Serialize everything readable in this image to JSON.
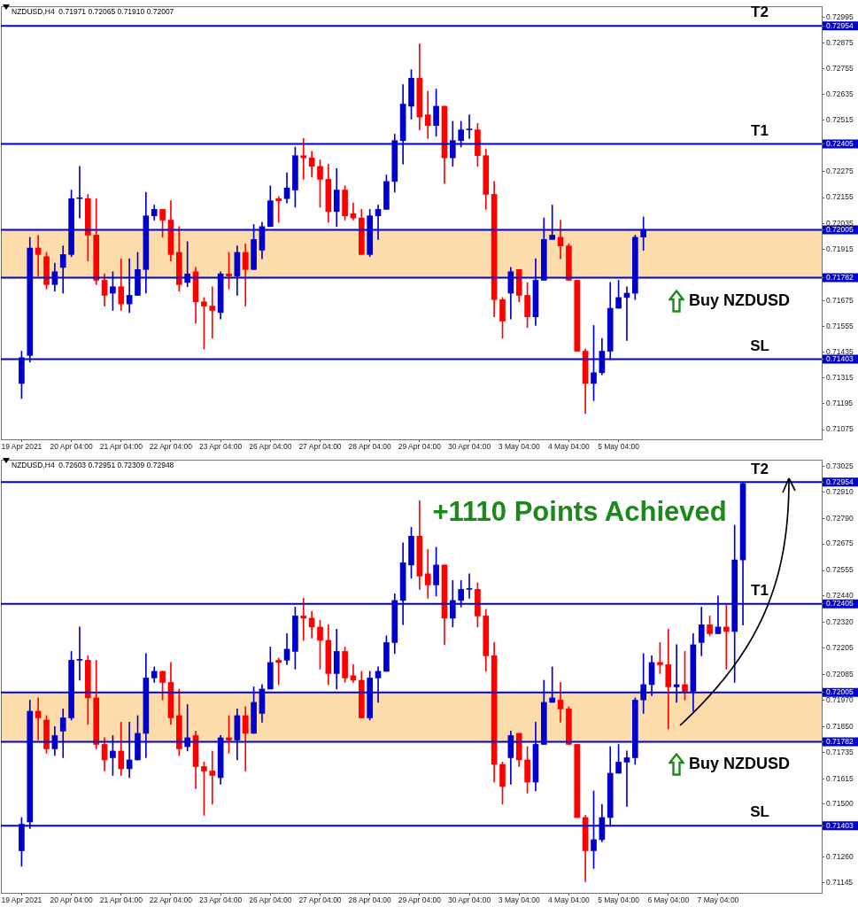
{
  "chart_data": [
    {
      "type": "candlestick",
      "title": "NZDUSD,H4  0.71971 0.72065 0.71910 0.72007",
      "categories": [
        null,
        null,
        "19 Apr 2021",
        null,
        null,
        null,
        null,
        null,
        "20 Apr 04:00",
        null,
        null,
        null,
        null,
        null,
        "21 Apr 04:00",
        null,
        null,
        null,
        null,
        null,
        "22 Apr 04:00",
        null,
        null,
        null,
        null,
        null,
        "23 Apr 04:00",
        null,
        null,
        null,
        null,
        null,
        "26 Apr 04:00",
        null,
        null,
        null,
        null,
        null,
        "27 Apr 04:00",
        null,
        null,
        null,
        null,
        null,
        "28 Apr 04:00",
        null,
        null,
        null,
        null,
        null,
        "29 Apr 04:00",
        null,
        null,
        null,
        null,
        null,
        "30 Apr 04:00",
        null,
        null,
        null,
        null,
        null,
        "3 May 04:00",
        null,
        null,
        null,
        null,
        null,
        "4 May 04:00",
        null,
        null,
        null,
        null,
        null,
        "5 May 04:00",
        null,
        null,
        null,
        null,
        null,
        null,
        null,
        null,
        null,
        null,
        null,
        null,
        null,
        null,
        null,
        null,
        null,
        null,
        null,
        null,
        null,
        null,
        null,
        null
      ],
      "ohlc": [
        null,
        null,
        [
          0.7129,
          0.7144,
          0.7122,
          0.7141
        ],
        [
          0.7142,
          0.7197,
          0.7139,
          0.7192
        ],
        [
          0.7192,
          0.7198,
          0.7179,
          0.7189
        ],
        [
          0.7188,
          0.719,
          0.7173,
          0.7175
        ],
        [
          0.7175,
          0.7185,
          0.7172,
          0.7181
        ],
        [
          0.7183,
          0.7193,
          0.7171,
          0.7189
        ],
        [
          0.7189,
          0.7219,
          0.7188,
          0.7215
        ],
        [
          0.7215,
          0.723,
          0.7206,
          0.7215
        ],
        [
          0.7215,
          0.7217,
          0.7186,
          0.7198
        ],
        [
          0.7198,
          0.7215,
          0.7175,
          0.7177
        ],
        [
          0.7177,
          0.718,
          0.7165,
          0.717
        ],
        [
          0.7171,
          0.7181,
          0.7163,
          0.7174
        ],
        [
          0.7174,
          0.7187,
          0.7163,
          0.7166
        ],
        [
          0.7166,
          0.7187,
          0.7162,
          0.717
        ],
        [
          0.717,
          0.719,
          0.717,
          0.7182
        ],
        [
          0.7182,
          0.7218,
          0.7171,
          0.7207
        ],
        [
          0.7207,
          0.7212,
          0.7205,
          0.721
        ],
        [
          0.721,
          0.721,
          0.7197,
          0.7205
        ],
        [
          0.7205,
          0.7214,
          0.7186,
          0.7189
        ],
        [
          0.719,
          0.7202,
          0.7172,
          0.7175
        ],
        [
          0.7176,
          0.7195,
          0.7174,
          0.718
        ],
        [
          0.7181,
          0.7183,
          0.7157,
          0.7167
        ],
        [
          0.7167,
          0.7169,
          0.7145,
          0.7165
        ],
        [
          0.7165,
          0.7174,
          0.715,
          0.7163
        ],
        [
          0.7162,
          0.7181,
          0.7159,
          0.718
        ],
        [
          0.718,
          0.719,
          0.7173,
          0.7179
        ],
        [
          0.7179,
          0.7193,
          0.717,
          0.719
        ],
        [
          0.719,
          0.7194,
          0.7165,
          0.7182
        ],
        [
          0.7182,
          0.7203,
          0.7182,
          0.7196
        ],
        [
          0.7191,
          0.7204,
          0.7187,
          0.7202
        ],
        [
          0.7202,
          0.7221,
          0.7202,
          0.7214
        ],
        [
          0.7215,
          0.7216,
          0.7204,
          0.7214
        ],
        [
          0.7215,
          0.7227,
          0.7213,
          0.722
        ],
        [
          0.7219,
          0.7239,
          0.7211,
          0.7235
        ],
        [
          0.7235,
          0.7243,
          0.7224,
          0.7234
        ],
        [
          0.7234,
          0.7237,
          0.7225,
          0.723
        ],
        [
          0.723,
          0.7233,
          0.7211,
          0.7224
        ],
        [
          0.7224,
          0.7231,
          0.7204,
          0.7209
        ],
        [
          0.7209,
          0.7229,
          0.7202,
          0.7219
        ],
        [
          0.7219,
          0.7221,
          0.7205,
          0.7207
        ],
        [
          0.7208,
          0.7213,
          0.7205,
          0.7206
        ],
        [
          0.7206,
          0.721,
          0.7189,
          0.7189
        ],
        [
          0.7189,
          0.721,
          0.7188,
          0.7207
        ],
        [
          0.7207,
          0.7212,
          0.7196,
          0.721
        ],
        [
          0.721,
          0.7226,
          0.721,
          0.7223
        ],
        [
          0.7223,
          0.7245,
          0.7218,
          0.7242
        ],
        [
          0.7242,
          0.7268,
          0.7231,
          0.7259
        ],
        [
          0.7258,
          0.7275,
          0.7252,
          0.7271
        ],
        [
          0.7271,
          0.7287,
          0.7247,
          0.7253
        ],
        [
          0.7254,
          0.7265,
          0.7243,
          0.7249
        ],
        [
          0.7249,
          0.7266,
          0.7244,
          0.7258
        ],
        [
          0.7258,
          0.7258,
          0.7222,
          0.7234
        ],
        [
          0.7234,
          0.7251,
          0.723,
          0.7242
        ],
        [
          0.7242,
          0.7251,
          0.7239,
          0.7247
        ],
        [
          0.7247,
          0.7254,
          0.7243,
          0.7247
        ],
        [
          0.7247,
          0.725,
          0.723,
          0.7235
        ],
        [
          0.7235,
          0.7238,
          0.721,
          0.7217
        ],
        [
          0.7217,
          0.7223,
          0.716,
          0.7168
        ],
        [
          0.7168,
          0.7169,
          0.715,
          0.7158
        ],
        [
          0.7171,
          0.7183,
          0.7159,
          0.7181
        ],
        [
          0.7182,
          0.7182,
          0.7167,
          0.717
        ],
        [
          0.717,
          0.7176,
          0.7155,
          0.716
        ],
        [
          0.716,
          0.7187,
          0.7156,
          0.7177
        ],
        [
          0.7177,
          0.7206,
          0.7177,
          0.7196
        ],
        [
          0.7196,
          0.7212,
          0.7196,
          0.7198
        ],
        [
          0.7197,
          0.7205,
          0.7187,
          0.7193
        ],
        [
          0.7193,
          0.7194,
          0.7177,
          0.7177
        ],
        [
          0.7177,
          0.7177,
          0.7144,
          0.7144
        ],
        [
          0.7144,
          0.7145,
          0.7115,
          0.7129
        ],
        [
          0.7129,
          0.7156,
          0.7121,
          0.7134
        ],
        [
          0.7134,
          0.715,
          0.7133,
          0.7144
        ],
        [
          0.7144,
          0.7176,
          0.714,
          0.7164
        ],
        [
          0.7164,
          0.7177,
          0.7164,
          0.7169
        ],
        [
          0.7169,
          0.7174,
          0.7149,
          0.7171
        ],
        [
          0.7171,
          0.7198,
          0.7168,
          0.7197
        ],
        [
          0.71971,
          0.72065,
          0.7191,
          0.72007
        ],
        null,
        null,
        null,
        null,
        null,
        null,
        null,
        null,
        null,
        null,
        null,
        null,
        null,
        null,
        null,
        null,
        null,
        null,
        null,
        null,
        null
      ],
      "colors": [
        null,
        null,
        "#0000cd",
        "#0000cd",
        "#ff0000",
        "#ff0000",
        "#0000cd",
        "#0000cd",
        "#0000cd",
        "#0000cd",
        "#ff0000",
        "#ff0000",
        "#ff0000",
        "#0000cd",
        "#ff0000",
        "#0000cd",
        "#0000cd",
        "#0000cd",
        "#0000cd",
        "#ff0000",
        "#ff0000",
        "#ff0000",
        "#0000cd",
        "#ff0000",
        "#ff0000",
        "#ff0000",
        "#0000cd",
        "#ff0000",
        "#0000cd",
        "#ff0000",
        "#0000cd",
        "#0000cd",
        "#0000cd",
        "#ff0000",
        "#0000cd",
        "#0000cd",
        "#ff0000",
        "#ff0000",
        "#ff0000",
        "#ff0000",
        "#0000cd",
        "#ff0000",
        "#ff0000",
        "#ff0000",
        "#0000cd",
        "#0000cd",
        "#0000cd",
        "#0000cd",
        "#0000cd",
        "#0000cd",
        "#ff0000",
        "#ff0000",
        "#0000cd",
        "#ff0000",
        "#0000cd",
        "#0000cd",
        "#0000cd",
        "#ff0000",
        "#ff0000",
        "#ff0000",
        "#ff0000",
        "#0000cd",
        "#ff0000",
        "#ff0000",
        "#0000cd",
        "#0000cd",
        "#0000cd",
        "#ff0000",
        "#ff0000",
        "#ff0000",
        "#ff0000",
        "#0000cd",
        "#0000cd",
        "#0000cd",
        "#0000cd",
        "#0000cd",
        "#0000cd",
        "#0000cd",
        null,
        null,
        null,
        null,
        null,
        null,
        null,
        null,
        null,
        null,
        null,
        null,
        null,
        null,
        null,
        null,
        null,
        null,
        null,
        null,
        null
      ],
      "ylim": [
        0.7103,
        0.73045
      ],
      "yticks": [
        0.72995,
        0.72954,
        0.72875,
        0.72755,
        0.72635,
        0.72515,
        0.72405,
        0.72275,
        0.72155,
        0.72035,
        0.72005,
        0.71915,
        0.71782,
        0.71675,
        0.71555,
        0.71435,
        0.71403,
        0.71315,
        0.71195,
        0.71075
      ],
      "ref_lines": [
        {
          "axis": "y",
          "value": 0.72954,
          "label": "T2",
          "color": "#0000d0"
        },
        {
          "axis": "y",
          "value": 0.72405,
          "label": "T1",
          "color": "#0000d0"
        },
        {
          "axis": "y",
          "value": 0.72005,
          "color": "#0000d0"
        },
        {
          "axis": "y",
          "value": 0.71782,
          "color": "#0000d0"
        },
        {
          "axis": "y",
          "value": 0.71403,
          "label": "SL",
          "color": "#0000d0"
        }
      ],
      "bands": [
        {
          "axis": "y",
          "from": 0.71782,
          "to": 0.72005,
          "label": "Buy NZDUSD",
          "color": "#fddcab"
        }
      ]
    },
    {
      "type": "candlestick",
      "title": "NZDUSD,H4  0.72603 0.72951 0.72309 0.72948",
      "categories": [
        null,
        null,
        "19 Apr 2021",
        null,
        null,
        null,
        null,
        null,
        "20 Apr 04:00",
        null,
        null,
        null,
        null,
        null,
        "21 Apr 04:00",
        null,
        null,
        null,
        null,
        null,
        "22 Apr 04:00",
        null,
        null,
        null,
        null,
        null,
        "23 Apr 04:00",
        null,
        null,
        null,
        null,
        null,
        "26 Apr 04:00",
        null,
        null,
        null,
        null,
        null,
        "27 Apr 04:00",
        null,
        null,
        null,
        null,
        null,
        "28 Apr 04:00",
        null,
        null,
        null,
        null,
        null,
        "29 Apr 04:00",
        null,
        null,
        null,
        null,
        null,
        "30 Apr 04:00",
        null,
        null,
        null,
        null,
        null,
        "3 May 04:00",
        null,
        null,
        null,
        null,
        null,
        "4 May 04:00",
        null,
        null,
        null,
        null,
        null,
        "5 May 04:00",
        null,
        null,
        null,
        null,
        null,
        "6 May 04:00",
        null,
        null,
        null,
        null,
        null,
        "7 May 04:00",
        null,
        null,
        null,
        null,
        null,
        null,
        null,
        null,
        null,
        null,
        null,
        null
      ],
      "ohlc": [
        null,
        null,
        [
          0.7129,
          0.7144,
          0.7122,
          0.7141
        ],
        [
          0.7142,
          0.7197,
          0.7139,
          0.7192
        ],
        [
          0.7192,
          0.7198,
          0.7179,
          0.7189
        ],
        [
          0.7188,
          0.719,
          0.7173,
          0.7175
        ],
        [
          0.7175,
          0.7185,
          0.7172,
          0.7181
        ],
        [
          0.7183,
          0.7193,
          0.7171,
          0.7189
        ],
        [
          0.7189,
          0.7219,
          0.7188,
          0.7215
        ],
        [
          0.7215,
          0.723,
          0.7206,
          0.7215
        ],
        [
          0.7215,
          0.7217,
          0.7186,
          0.7198
        ],
        [
          0.7198,
          0.7215,
          0.7175,
          0.7177
        ],
        [
          0.7177,
          0.718,
          0.7165,
          0.717
        ],
        [
          0.7171,
          0.7181,
          0.7163,
          0.7174
        ],
        [
          0.7174,
          0.7187,
          0.7163,
          0.7166
        ],
        [
          0.7166,
          0.7187,
          0.7162,
          0.717
        ],
        [
          0.717,
          0.719,
          0.717,
          0.7182
        ],
        [
          0.7182,
          0.7218,
          0.7171,
          0.7207
        ],
        [
          0.7207,
          0.7212,
          0.7205,
          0.721
        ],
        [
          0.721,
          0.721,
          0.7197,
          0.7205
        ],
        [
          0.7205,
          0.7214,
          0.7186,
          0.7189
        ],
        [
          0.719,
          0.7202,
          0.7172,
          0.7175
        ],
        [
          0.7176,
          0.7195,
          0.7174,
          0.718
        ],
        [
          0.7181,
          0.7183,
          0.7157,
          0.7167
        ],
        [
          0.7167,
          0.7169,
          0.7145,
          0.7165
        ],
        [
          0.7165,
          0.7174,
          0.715,
          0.7163
        ],
        [
          0.7162,
          0.7181,
          0.7159,
          0.718
        ],
        [
          0.718,
          0.719,
          0.7173,
          0.7179
        ],
        [
          0.7179,
          0.7193,
          0.717,
          0.719
        ],
        [
          0.719,
          0.7194,
          0.7165,
          0.7182
        ],
        [
          0.7182,
          0.7203,
          0.7182,
          0.7196
        ],
        [
          0.7191,
          0.7204,
          0.7187,
          0.7202
        ],
        [
          0.7202,
          0.7221,
          0.7202,
          0.7214
        ],
        [
          0.7215,
          0.7216,
          0.7204,
          0.7214
        ],
        [
          0.7215,
          0.7227,
          0.7213,
          0.722
        ],
        [
          0.7219,
          0.7239,
          0.7211,
          0.7235
        ],
        [
          0.7235,
          0.7243,
          0.7224,
          0.7234
        ],
        [
          0.7234,
          0.7237,
          0.7225,
          0.723
        ],
        [
          0.723,
          0.7233,
          0.7211,
          0.7224
        ],
        [
          0.7224,
          0.7231,
          0.7204,
          0.7209
        ],
        [
          0.7209,
          0.7229,
          0.7202,
          0.7219
        ],
        [
          0.7219,
          0.7221,
          0.7205,
          0.7207
        ],
        [
          0.7208,
          0.7213,
          0.7205,
          0.7206
        ],
        [
          0.7206,
          0.721,
          0.7189,
          0.7189
        ],
        [
          0.7189,
          0.721,
          0.7188,
          0.7207
        ],
        [
          0.7207,
          0.7212,
          0.7196,
          0.721
        ],
        [
          0.721,
          0.7226,
          0.721,
          0.7223
        ],
        [
          0.7223,
          0.7245,
          0.7218,
          0.7242
        ],
        [
          0.7242,
          0.7268,
          0.7231,
          0.7259
        ],
        [
          0.7258,
          0.7275,
          0.7252,
          0.7271
        ],
        [
          0.7271,
          0.7287,
          0.7247,
          0.7253
        ],
        [
          0.7254,
          0.7265,
          0.7243,
          0.7249
        ],
        [
          0.7249,
          0.7266,
          0.7244,
          0.7258
        ],
        [
          0.7258,
          0.7258,
          0.7222,
          0.7234
        ],
        [
          0.7234,
          0.7251,
          0.723,
          0.7242
        ],
        [
          0.7242,
          0.7251,
          0.7239,
          0.7247
        ],
        [
          0.7247,
          0.7254,
          0.7243,
          0.7247
        ],
        [
          0.7247,
          0.725,
          0.723,
          0.7235
        ],
        [
          0.7235,
          0.7238,
          0.721,
          0.7217
        ],
        [
          0.7217,
          0.7223,
          0.716,
          0.7168
        ],
        [
          0.7168,
          0.7169,
          0.715,
          0.7158
        ],
        [
          0.7171,
          0.7183,
          0.7159,
          0.7181
        ],
        [
          0.7182,
          0.7182,
          0.7167,
          0.717
        ],
        [
          0.717,
          0.7176,
          0.7155,
          0.716
        ],
        [
          0.716,
          0.7187,
          0.7156,
          0.7177
        ],
        [
          0.7177,
          0.7206,
          0.7177,
          0.7196
        ],
        [
          0.7196,
          0.7212,
          0.7196,
          0.7198
        ],
        [
          0.7197,
          0.7205,
          0.7187,
          0.7193
        ],
        [
          0.7193,
          0.7194,
          0.7177,
          0.7177
        ],
        [
          0.7177,
          0.7177,
          0.7144,
          0.7144
        ],
        [
          0.7144,
          0.7145,
          0.7115,
          0.7129
        ],
        [
          0.7129,
          0.7156,
          0.7121,
          0.7134
        ],
        [
          0.7134,
          0.715,
          0.7133,
          0.7144
        ],
        [
          0.7144,
          0.7176,
          0.714,
          0.7164
        ],
        [
          0.7164,
          0.7177,
          0.7164,
          0.7169
        ],
        [
          0.7169,
          0.7174,
          0.7149,
          0.7171
        ],
        [
          0.7171,
          0.7198,
          0.7168,
          0.7197
        ],
        [
          0.71971,
          0.7218,
          0.7191,
          0.7204
        ],
        [
          0.7204,
          0.7217,
          0.7199,
          0.7214
        ],
        [
          0.7214,
          0.7223,
          0.7209,
          0.7213
        ],
        [
          0.7213,
          0.7229,
          0.7184,
          0.7203
        ],
        [
          0.7203,
          0.7222,
          0.7196,
          0.7204
        ],
        [
          0.7204,
          0.7219,
          0.7197,
          0.7201
        ],
        [
          0.7201,
          0.7227,
          0.7192,
          0.7222
        ],
        [
          0.7223,
          0.7239,
          0.7217,
          0.7231
        ],
        [
          0.7231,
          0.7235,
          0.7226,
          0.7227
        ],
        [
          0.7227,
          0.7244,
          0.7227,
          0.723
        ],
        [
          0.723,
          0.724,
          0.7211,
          0.7228
        ],
        [
          0.7228,
          0.7276,
          0.7205,
          0.72603
        ],
        [
          0.72603,
          0.72951,
          0.72309,
          0.72948
        ],
        null,
        null,
        null,
        null,
        null,
        null,
        null,
        null,
        null
      ],
      "colors": [
        null,
        null,
        "#0000cd",
        "#0000cd",
        "#ff0000",
        "#ff0000",
        "#0000cd",
        "#0000cd",
        "#0000cd",
        "#0000cd",
        "#ff0000",
        "#ff0000",
        "#ff0000",
        "#0000cd",
        "#ff0000",
        "#0000cd",
        "#0000cd",
        "#0000cd",
        "#0000cd",
        "#ff0000",
        "#ff0000",
        "#ff0000",
        "#0000cd",
        "#ff0000",
        "#ff0000",
        "#ff0000",
        "#0000cd",
        "#ff0000",
        "#0000cd",
        "#ff0000",
        "#0000cd",
        "#0000cd",
        "#0000cd",
        "#ff0000",
        "#0000cd",
        "#0000cd",
        "#ff0000",
        "#ff0000",
        "#ff0000",
        "#ff0000",
        "#0000cd",
        "#ff0000",
        "#ff0000",
        "#ff0000",
        "#0000cd",
        "#0000cd",
        "#0000cd",
        "#0000cd",
        "#0000cd",
        "#0000cd",
        "#ff0000",
        "#ff0000",
        "#0000cd",
        "#ff0000",
        "#0000cd",
        "#0000cd",
        "#0000cd",
        "#ff0000",
        "#ff0000",
        "#ff0000",
        "#ff0000",
        "#0000cd",
        "#ff0000",
        "#ff0000",
        "#0000cd",
        "#0000cd",
        "#0000cd",
        "#ff0000",
        "#ff0000",
        "#ff0000",
        "#ff0000",
        "#0000cd",
        "#0000cd",
        "#0000cd",
        "#0000cd",
        "#0000cd",
        "#0000cd",
        "#0000cd",
        "#0000cd",
        "#ff0000",
        "#ff0000",
        "#0000cd",
        "#ff0000",
        "#0000cd",
        "#0000cd",
        "#ff0000",
        "#0000cd",
        "#ff0000",
        "#0000cd",
        "#0000cd",
        null,
        null,
        null,
        null,
        null,
        null,
        null,
        null,
        null
      ],
      "ylim": [
        0.711,
        0.73055
      ],
      "yticks": [
        0.73025,
        0.72954,
        {
          "value": 0.7291,
          "label": "0.72910"
        },
        {
          "value": 0.7279,
          "label": "0.72790"
        },
        0.72675,
        0.72555,
        {
          "value": 0.7244,
          "label": "0.72440"
        },
        0.72405,
        {
          "value": 0.7232,
          "label": "0.72320"
        },
        0.72205,
        0.72085,
        0.72005,
        {
          "value": 0.7197,
          "label": "0.71970"
        },
        {
          "value": 0.7185,
          "label": "0.71850"
        },
        0.71782,
        0.71735,
        0.71615,
        {
          "value": 0.715,
          "label": "0.71500"
        },
        0.71403,
        {
          "value": 0.7126,
          "label": "0.71260"
        },
        0.71145
      ],
      "ref_lines": [
        {
          "axis": "y",
          "value": 0.72954,
          "label": "T2",
          "color": "#0000d0"
        },
        {
          "axis": "y",
          "value": 0.72405,
          "label": "T1",
          "color": "#0000d0"
        },
        {
          "axis": "y",
          "value": 0.72005,
          "color": "#0000d0"
        },
        {
          "axis": "y",
          "value": 0.71782,
          "color": "#0000d0"
        },
        {
          "axis": "y",
          "value": 0.71403,
          "label": "SL",
          "color": "#0000d0"
        }
      ],
      "bands": [
        {
          "axis": "y",
          "from": 0.71782,
          "to": 0.72005,
          "label": "Buy NZDUSD",
          "color": "#fddcab"
        }
      ],
      "annotations": [
        "+1110 Points Achieved"
      ]
    }
  ]
}
